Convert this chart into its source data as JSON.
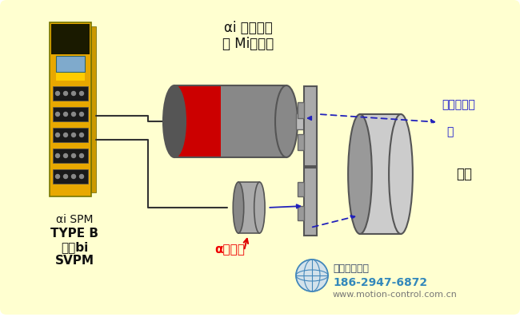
{
  "bg_color": "#FFFFD0",
  "label_motor_line1": "αi 主轴电机",
  "label_motor_line2": "带 Mi传感器",
  "label_spindle": "主轴",
  "label_belt_line1": "同步带或齿",
  "label_belt_line2": "轮",
  "label_encoder": "α编码器",
  "label_drive_line1": "αi SPM",
  "label_drive_line2": "TYPE B",
  "label_drive_line3": "或者bi",
  "label_drive_line4": "SVPM",
  "watermark_line1": "寻步西安传控",
  "watermark_phone": "186-2947-6872",
  "watermark_web": "www.motion-control.com.cn",
  "encoder_label_color": "#EE0000",
  "belt_label_color": "#1111CC",
  "spindle_label_color": "#111111",
  "motor_label_color": "#111111",
  "drive_label_color": "#111111",
  "wire_color": "#333333",
  "arrow_color": "#2222BB"
}
